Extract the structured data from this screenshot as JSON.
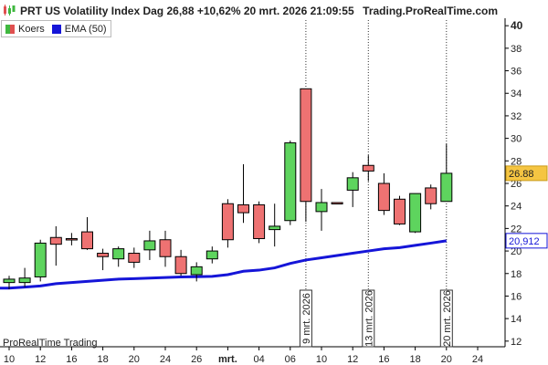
{
  "header": {
    "title": "PRT US Volatility Index Dag 26,88 +10,62% 20 mrt. 2026 21:09:55",
    "brand": "Trading.ProRealTime.com"
  },
  "legend": [
    {
      "label": "Koers",
      "color": "#4caf50"
    },
    {
      "label": "EMA (50)",
      "color": "#1515d8"
    }
  ],
  "footer": "ProRealTime Trading",
  "colors": {
    "up": "#5ed45e",
    "down": "#ee7272",
    "ema": "#1515d8",
    "last_price_bg": "#f5c542",
    "ema_label_border": "#1515d8"
  },
  "chart_data": {
    "type": "candlestick",
    "ylim": [
      11.5,
      40.5
    ],
    "y_ticks": [
      12,
      14,
      16,
      18,
      20,
      22,
      24,
      26,
      28,
      30,
      32,
      34,
      36,
      38,
      40
    ],
    "x_tick_labels": [
      {
        "label": "10",
        "bold": false,
        "index": 0
      },
      {
        "label": "12",
        "bold": false,
        "index": 2
      },
      {
        "label": "16",
        "bold": false,
        "index": 4
      },
      {
        "label": "18",
        "bold": false,
        "index": 6
      },
      {
        "label": "20",
        "bold": false,
        "index": 8
      },
      {
        "label": "24",
        "bold": false,
        "index": 10
      },
      {
        "label": "26",
        "bold": false,
        "index": 12
      },
      {
        "label": "mrt.",
        "bold": true,
        "index": 14
      },
      {
        "label": "04",
        "bold": false,
        "index": 16
      },
      {
        "label": "06",
        "bold": false,
        "index": 18
      },
      {
        "label": "10",
        "bold": false,
        "index": 20
      },
      {
        "label": "12",
        "bold": false,
        "index": 22
      },
      {
        "label": "16",
        "bold": false,
        "index": 24
      },
      {
        "label": "18",
        "bold": false,
        "index": 26
      },
      {
        "label": "20",
        "bold": false,
        "index": 28
      },
      {
        "label": "24",
        "bold": false,
        "index": 30
      }
    ],
    "candles": [
      {
        "o": 17.2,
        "h": 17.8,
        "l": 16.6,
        "c": 17.5
      },
      {
        "o": 17.2,
        "h": 18.5,
        "l": 16.8,
        "c": 17.6
      },
      {
        "o": 17.7,
        "h": 21.0,
        "l": 17.3,
        "c": 20.7
      },
      {
        "o": 21.2,
        "h": 22.2,
        "l": 18.7,
        "c": 20.6
      },
      {
        "o": 21.1,
        "h": 21.6,
        "l": 20.5,
        "c": 21.0
      },
      {
        "o": 21.7,
        "h": 23.0,
        "l": 20.1,
        "c": 20.2
      },
      {
        "o": 19.8,
        "h": 20.2,
        "l": 18.3,
        "c": 19.5
      },
      {
        "o": 19.3,
        "h": 20.4,
        "l": 18.6,
        "c": 20.2
      },
      {
        "o": 19.8,
        "h": 20.3,
        "l": 18.5,
        "c": 19.0
      },
      {
        "o": 20.1,
        "h": 21.8,
        "l": 19.2,
        "c": 20.9
      },
      {
        "o": 21.0,
        "h": 21.8,
        "l": 18.6,
        "c": 19.5
      },
      {
        "o": 19.5,
        "h": 20.1,
        "l": 17.8,
        "c": 18.0
      },
      {
        "o": 17.9,
        "h": 19.0,
        "l": 17.3,
        "c": 18.6
      },
      {
        "o": 19.3,
        "h": 20.4,
        "l": 18.9,
        "c": 20.0
      },
      {
        "o": 24.2,
        "h": 24.6,
        "l": 20.3,
        "c": 21.0
      },
      {
        "o": 24.1,
        "h": 27.7,
        "l": 22.5,
        "c": 23.4
      },
      {
        "o": 24.1,
        "h": 24.4,
        "l": 20.7,
        "c": 21.1
      },
      {
        "o": 21.9,
        "h": 24.2,
        "l": 20.4,
        "c": 22.2
      },
      {
        "o": 22.7,
        "h": 29.8,
        "l": 22.3,
        "c": 29.6
      },
      {
        "o": 34.4,
        "h": 34.4,
        "l": 22.6,
        "c": 24.4
      },
      {
        "o": 23.5,
        "h": 25.5,
        "l": 21.8,
        "c": 24.3
      },
      {
        "o": 24.3,
        "h": 24.3,
        "l": 24.2,
        "c": 24.2
      },
      {
        "o": 25.4,
        "h": 27.0,
        "l": 23.9,
        "c": 26.5
      },
      {
        "o": 27.6,
        "h": 28.5,
        "l": 26.2,
        "c": 27.1
      },
      {
        "o": 26.0,
        "h": 26.9,
        "l": 23.2,
        "c": 23.6
      },
      {
        "o": 24.6,
        "h": 24.9,
        "l": 22.3,
        "c": 22.4
      },
      {
        "o": 21.7,
        "h": 25.1,
        "l": 21.6,
        "c": 25.1
      },
      {
        "o": 25.6,
        "h": 25.9,
        "l": 23.7,
        "c": 24.2
      },
      {
        "o": 24.4,
        "h": 29.5,
        "l": 24.4,
        "c": 26.9
      }
    ],
    "ema": [
      16.7,
      16.8,
      16.9,
      17.1,
      17.2,
      17.3,
      17.4,
      17.5,
      17.55,
      17.6,
      17.65,
      17.7,
      17.72,
      17.75,
      17.9,
      18.2,
      18.3,
      18.5,
      18.9,
      19.2,
      19.4,
      19.6,
      19.8,
      20.0,
      20.2,
      20.3,
      20.5,
      20.7,
      20.91
    ],
    "vlines": [
      {
        "index": 19,
        "label": "9 mrt. 2026"
      },
      {
        "index": 23,
        "label": "13 mrt. 2026"
      },
      {
        "index": 28,
        "label": "20 mrt. 2026"
      }
    ],
    "last_price_label": "26.88",
    "ema_last_label": "20,912"
  }
}
